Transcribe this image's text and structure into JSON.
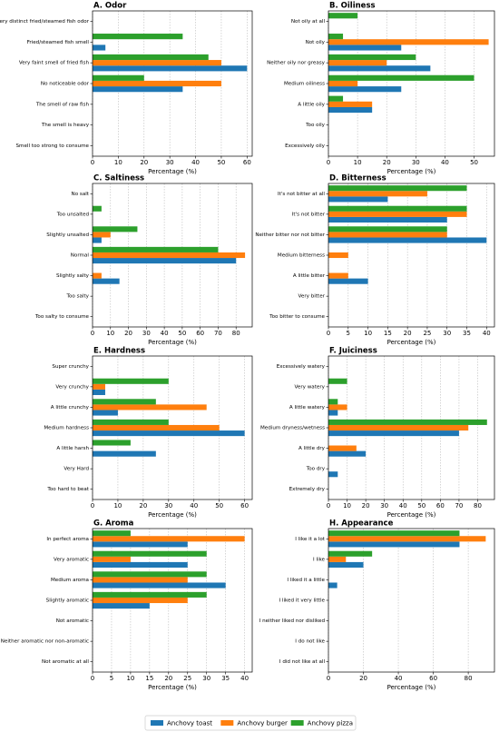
{
  "chart_data": [
    {
      "type": "barh",
      "title": "A. Odor",
      "xlabel": "Percentage (%)",
      "categories": [
        "Very distinct fried/steamed fish odor",
        "Fried/steamed fish smell",
        "Very faint smell of fried fish",
        "No noticeable odor",
        "The smell of raw fish",
        "The smell is heavy",
        "Smell too strong to consume"
      ],
      "series": [
        {
          "name": "Anchovy toast",
          "color": "#1f77b4",
          "values": [
            0,
            5,
            60,
            35,
            0,
            0,
            0
          ]
        },
        {
          "name": "Anchovy burger",
          "color": "#ff7f0e",
          "values": [
            0,
            0,
            50,
            50,
            0,
            0,
            0
          ]
        },
        {
          "name": "Anchovy pizza",
          "color": "#2ca02c",
          "values": [
            0,
            35,
            45,
            20,
            0,
            0,
            0
          ]
        }
      ],
      "xlim": [
        0,
        62
      ],
      "xticks": [
        0,
        10,
        20,
        30,
        40,
        50,
        60
      ],
      "grid": true
    },
    {
      "type": "barh",
      "title": "B. Oiliness",
      "xlabel": "Percentage (%)",
      "categories": [
        "Not oily at all",
        "Not oily",
        "Neither oily nor greasy",
        "Medium oiliness",
        "A little oily",
        "Too oily",
        "Excessively oily"
      ],
      "series": [
        {
          "name": "Anchovy toast",
          "color": "#1f77b4",
          "values": [
            0,
            25,
            35,
            25,
            15,
            0,
            0
          ]
        },
        {
          "name": "Anchovy burger",
          "color": "#ff7f0e",
          "values": [
            0,
            55,
            20,
            10,
            15,
            0,
            0
          ]
        },
        {
          "name": "Anchovy pizza",
          "color": "#2ca02c",
          "values": [
            10,
            5,
            30,
            50,
            5,
            0,
            0
          ]
        }
      ],
      "xlim": [
        0,
        57
      ],
      "xticks": [
        0,
        10,
        20,
        30,
        40,
        50
      ],
      "grid": true
    },
    {
      "type": "barh",
      "title": "C. Saltiness",
      "xlabel": "Percentage (%)",
      "categories": [
        "No salt",
        "Too unsalted",
        "Slightly unsalted",
        "Normal",
        "Slightly salty",
        "Too salty",
        "Too salty to consume"
      ],
      "series": [
        {
          "name": "Anchovy toast",
          "color": "#1f77b4",
          "values": [
            0,
            0,
            5,
            80,
            15,
            0,
            0
          ]
        },
        {
          "name": "Anchovy burger",
          "color": "#ff7f0e",
          "values": [
            0,
            0,
            10,
            85,
            5,
            0,
            0
          ]
        },
        {
          "name": "Anchovy pizza",
          "color": "#2ca02c",
          "values": [
            0,
            5,
            25,
            70,
            0,
            0,
            0
          ]
        }
      ],
      "xlim": [
        0,
        89
      ],
      "xticks": [
        0,
        10,
        20,
        30,
        40,
        50,
        60,
        70,
        80
      ],
      "grid": true
    },
    {
      "type": "barh",
      "title": "D. Bitterness",
      "xlabel": "Percentage (%)",
      "categories": [
        "It's not bitter at all",
        "It's not bitter",
        "Neither bitter nor not bitter",
        "Medium bitterness",
        "A little bitter",
        "Very bitter",
        "Too bitter to consume"
      ],
      "series": [
        {
          "name": "Anchovy toast",
          "color": "#1f77b4",
          "values": [
            15,
            30,
            40,
            0,
            10,
            0,
            0
          ]
        },
        {
          "name": "Anchovy burger",
          "color": "#ff7f0e",
          "values": [
            25,
            35,
            30,
            5,
            5,
            0,
            0
          ]
        },
        {
          "name": "Anchovy pizza",
          "color": "#2ca02c",
          "values": [
            35,
            35,
            30,
            0,
            0,
            0,
            0
          ]
        }
      ],
      "xlim": [
        0,
        42
      ],
      "xticks": [
        0,
        5,
        10,
        15,
        20,
        25,
        30,
        35,
        40
      ],
      "grid": true
    },
    {
      "type": "barh",
      "title": "E. Hardness",
      "xlabel": "Percentage (%)",
      "categories": [
        "Super crunchy",
        "Very crunchy",
        "A little crunchy",
        "Medium hardness",
        "A little harsh",
        "Very Hard",
        "Too hard to beat"
      ],
      "series": [
        {
          "name": "Anchovy toast",
          "color": "#1f77b4",
          "values": [
            0,
            5,
            10,
            60,
            25,
            0,
            0
          ]
        },
        {
          "name": "Anchovy burger",
          "color": "#ff7f0e",
          "values": [
            0,
            5,
            45,
            50,
            0,
            0,
            0
          ]
        },
        {
          "name": "Anchovy pizza",
          "color": "#2ca02c",
          "values": [
            0,
            30,
            25,
            30,
            15,
            0,
            0
          ]
        }
      ],
      "xlim": [
        0,
        63
      ],
      "xticks": [
        0,
        10,
        20,
        30,
        40,
        50,
        60
      ],
      "grid": true
    },
    {
      "type": "barh",
      "title": "F. Juiciness",
      "xlabel": "Percentage (%)",
      "categories": [
        "Excessively watery",
        "Very watery",
        "A little watery",
        "Medium dryness/wetness",
        "A little dry",
        "Too dry",
        "Extremely dry"
      ],
      "series": [
        {
          "name": "Anchovy toast",
          "color": "#1f77b4",
          "values": [
            0,
            0,
            5,
            70,
            20,
            5,
            0
          ]
        },
        {
          "name": "Anchovy burger",
          "color": "#ff7f0e",
          "values": [
            0,
            0,
            10,
            75,
            15,
            0,
            0
          ]
        },
        {
          "name": "Anchovy pizza",
          "color": "#2ca02c",
          "values": [
            0,
            10,
            5,
            85,
            0,
            0,
            0
          ]
        }
      ],
      "xlim": [
        0,
        89
      ],
      "xticks": [
        0,
        10,
        20,
        30,
        40,
        50,
        60,
        70,
        80
      ],
      "grid": true
    },
    {
      "type": "barh",
      "title": "G. Aroma",
      "xlabel": "Percentage (%)",
      "categories": [
        "In perfect aroma",
        "Very aromatic",
        "Medium aroma",
        "Slightly aromatic",
        "Not aromatic",
        "Neither aromatic nor non-aromatic",
        "Not aromatic at all"
      ],
      "series": [
        {
          "name": "Anchovy toast",
          "color": "#1f77b4",
          "values": [
            25,
            25,
            35,
            15,
            0,
            0,
            0
          ]
        },
        {
          "name": "Anchovy burger",
          "color": "#ff7f0e",
          "values": [
            40,
            10,
            25,
            25,
            0,
            0,
            0
          ]
        },
        {
          "name": "Anchovy pizza",
          "color": "#2ca02c",
          "values": [
            10,
            30,
            30,
            30,
            0,
            0,
            0
          ]
        }
      ],
      "xlim": [
        0,
        42
      ],
      "xticks": [
        0,
        5,
        10,
        15,
        20,
        25,
        30,
        35,
        40
      ],
      "grid": true
    },
    {
      "type": "barh",
      "title": "H. Appearance",
      "xlabel": "Percentage (%)",
      "categories": [
        "I like it a lot",
        "I like",
        "I liked it a little",
        "I liked it very little",
        "I neither liked nor disliked",
        "I do not like",
        "I did not like at all"
      ],
      "series": [
        {
          "name": "Anchovy toast",
          "color": "#1f77b4",
          "values": [
            75,
            20,
            5,
            0,
            0,
            0,
            0
          ]
        },
        {
          "name": "Anchovy burger",
          "color": "#ff7f0e",
          "values": [
            90,
            10,
            0,
            0,
            0,
            0,
            0
          ]
        },
        {
          "name": "Anchovy pizza",
          "color": "#2ca02c",
          "values": [
            75,
            25,
            0,
            0,
            0,
            0,
            0
          ]
        }
      ],
      "xlim": [
        0,
        95
      ],
      "xticks": [
        0,
        20,
        40,
        60,
        80
      ],
      "grid": true
    }
  ]
}
